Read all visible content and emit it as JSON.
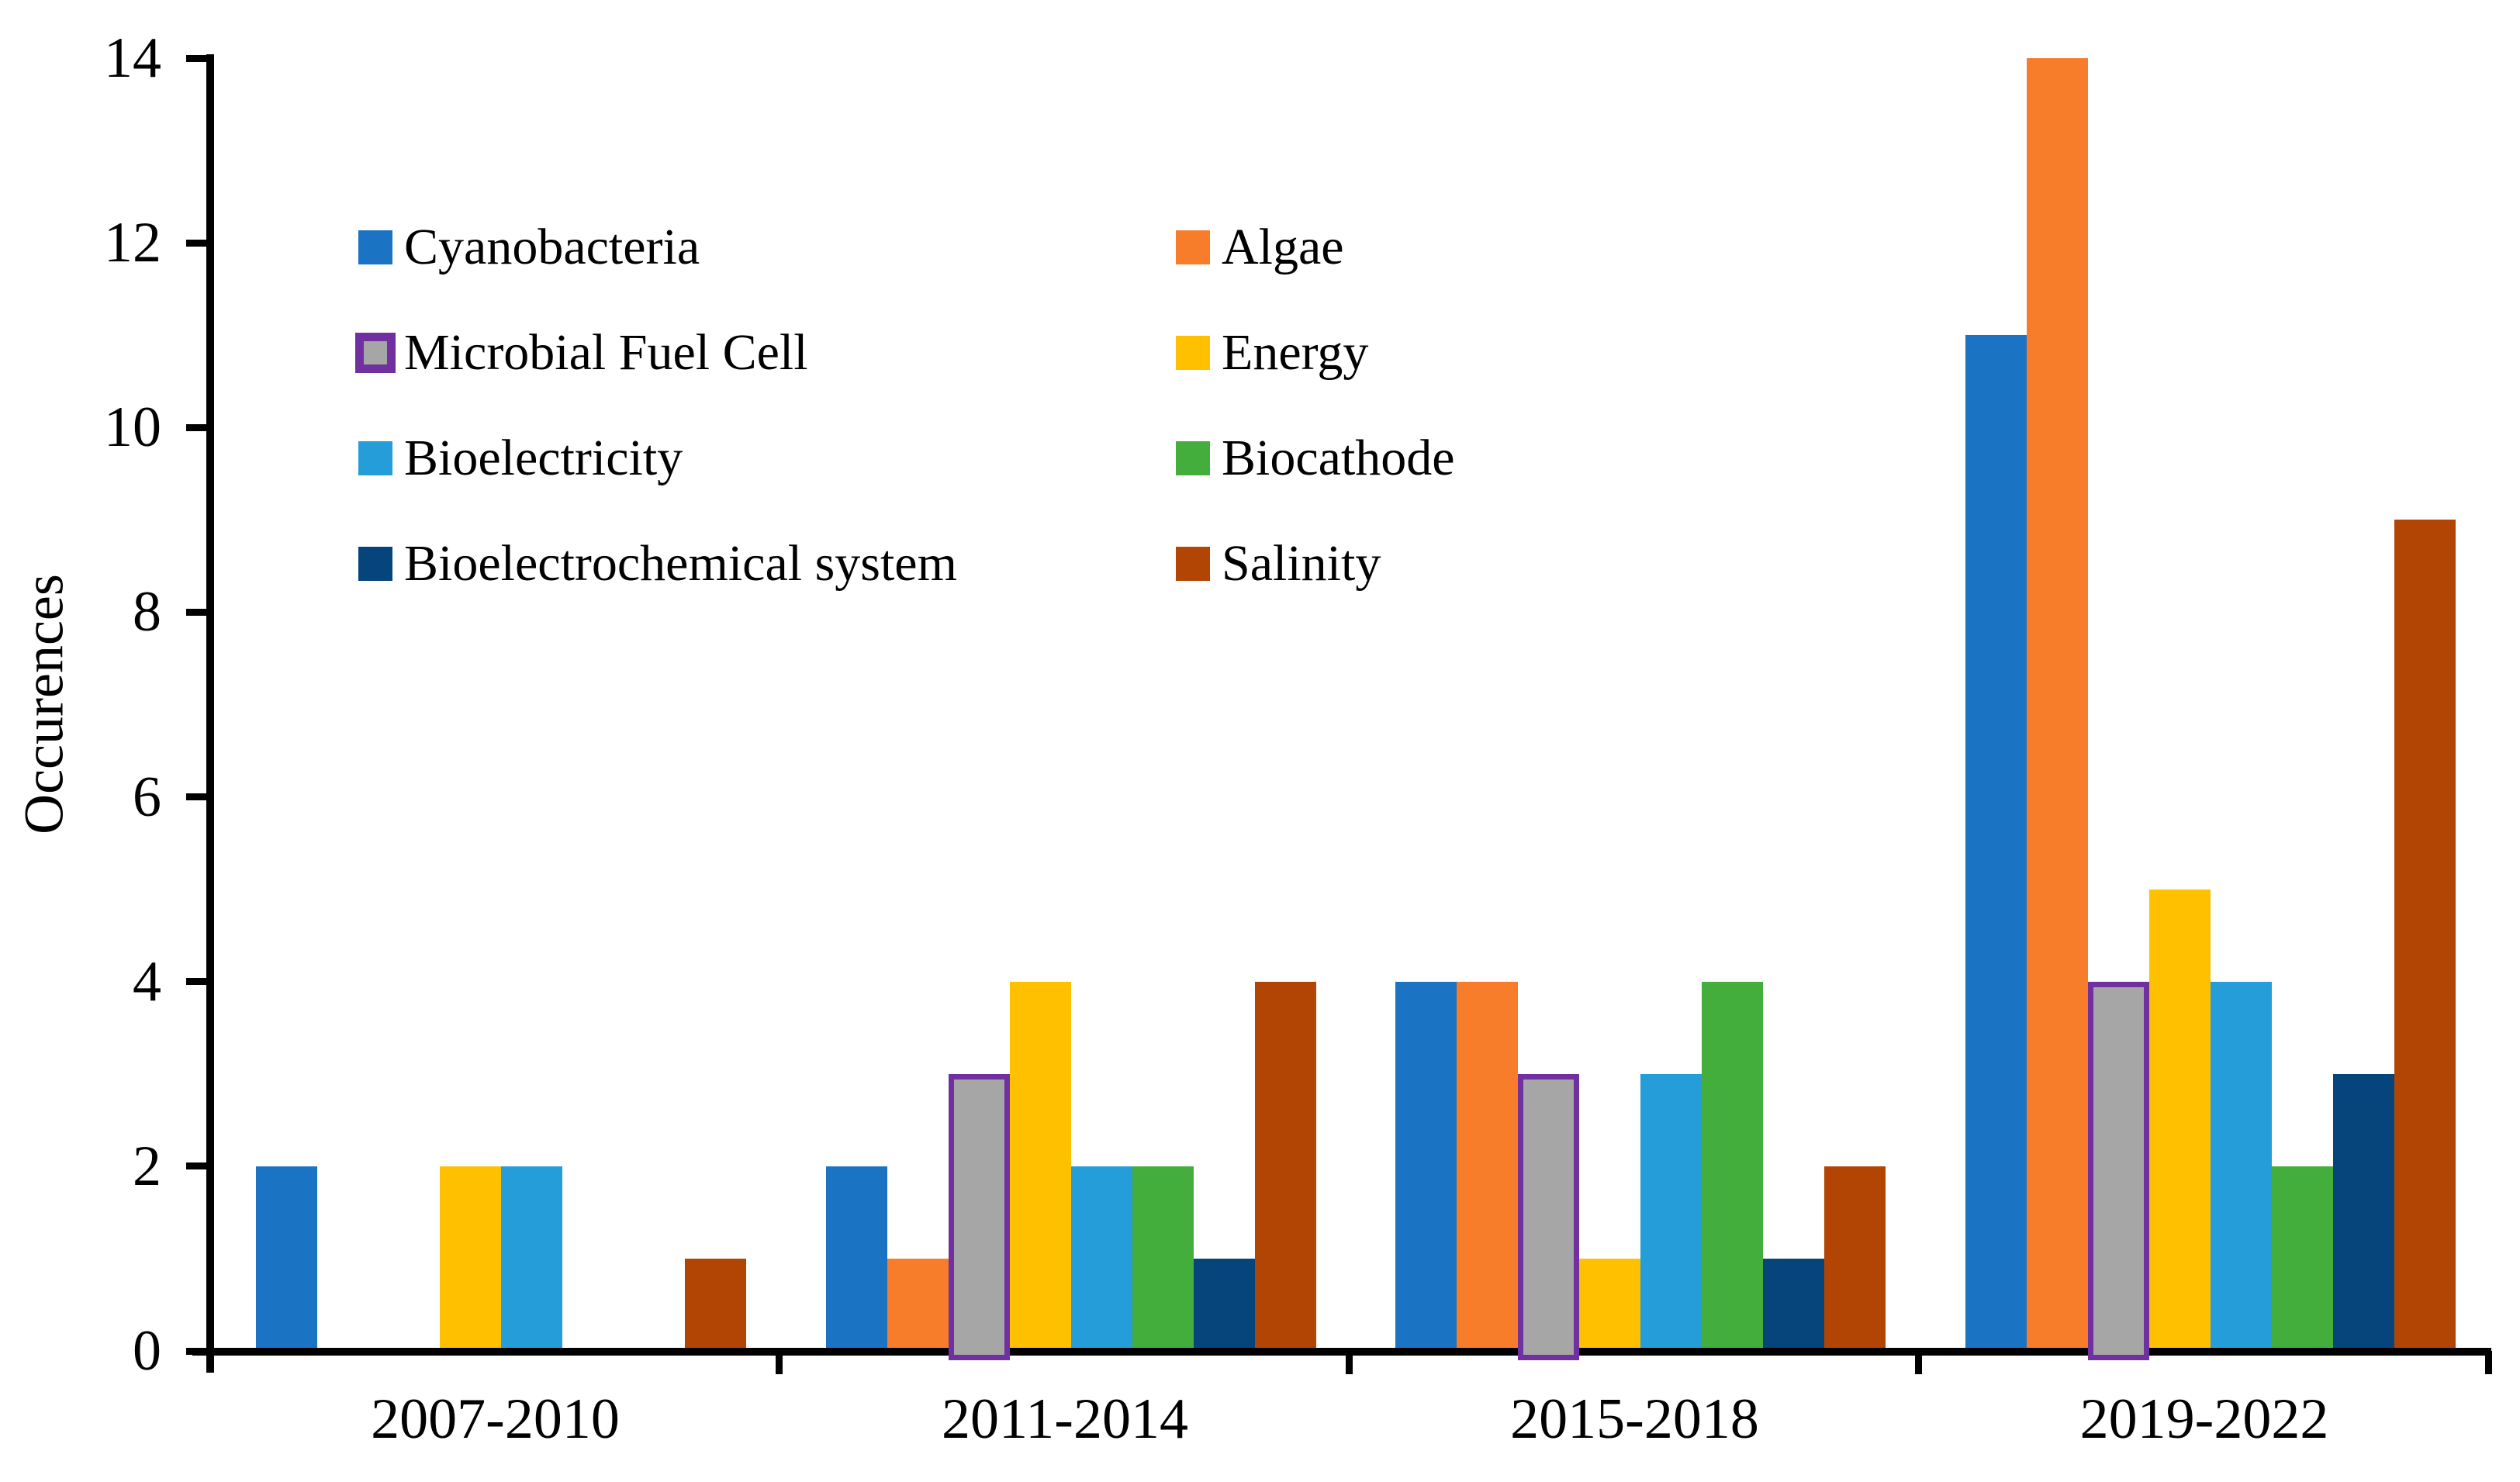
{
  "figure": {
    "background": "#FFFFFF",
    "axis_color": "#000000"
  },
  "y_axis": {
    "label": "Occurences",
    "tick_labels": [
      "0",
      "2",
      "4",
      "6",
      "8",
      "10",
      "12",
      "14"
    ]
  },
  "x_axis": {
    "group_labels": [
      "2007-2010",
      "2011-2014",
      "2015-2018",
      "2019-2022"
    ]
  },
  "legend": {
    "left_column": [
      {
        "label": "Cyanobacteria",
        "swatch_color": "#1B73C4"
      },
      {
        "label": "Microbial Fuel Cell",
        "swatch_color": "#A6A6A6",
        "swatch_border": "#7030A0"
      },
      {
        "label": "Bioelectricity",
        "swatch_color": "#249DD9"
      },
      {
        "label": "Bioelectrochemical system",
        "swatch_color": "#05457C"
      }
    ],
    "right_column": [
      {
        "label": "Algae",
        "swatch_color": "#F87D2B"
      },
      {
        "label": "Energy",
        "swatch_color": "#FFC000"
      },
      {
        "label": "Biocathode",
        "swatch_color": "#43AE3B"
      },
      {
        "label": "Salinity",
        "swatch_color": "#B34504"
      }
    ]
  },
  "chart_data": {
    "type": "bar",
    "title": "",
    "xlabel": "",
    "ylabel": "Occurences",
    "ylim": [
      0,
      14
    ],
    "yticks": [
      0,
      2,
      4,
      6,
      8,
      10,
      12,
      14
    ],
    "grid": false,
    "legend_position": "inside top-left, two columns",
    "categories": [
      "2007-2010",
      "2011-2014",
      "2015-2018",
      "2019-2022"
    ],
    "series": [
      {
        "name": "Cyanobacteria",
        "color": "#1B73C4",
        "values": [
          2,
          2,
          4,
          11
        ]
      },
      {
        "name": "Algae",
        "color": "#F87D2B",
        "values": [
          0,
          1,
          4,
          14
        ]
      },
      {
        "name": "Microbial Fuel Cell",
        "color": "#A6A6A6",
        "border_color": "#7030A0",
        "values": [
          0,
          3,
          3,
          4
        ]
      },
      {
        "name": "Energy",
        "color": "#FFC000",
        "values": [
          2,
          4,
          1,
          5
        ]
      },
      {
        "name": "Bioelectricity",
        "color": "#249DD9",
        "values": [
          2,
          2,
          3,
          4
        ]
      },
      {
        "name": "Biocathode",
        "color": "#43AE3B",
        "values": [
          0,
          2,
          4,
          2
        ]
      },
      {
        "name": "Bioelectrochemical system",
        "color": "#05457C",
        "values": [
          0,
          1,
          1,
          3
        ]
      },
      {
        "name": "Salinity",
        "color": "#B34504",
        "values": [
          1,
          4,
          2,
          9
        ]
      }
    ]
  }
}
